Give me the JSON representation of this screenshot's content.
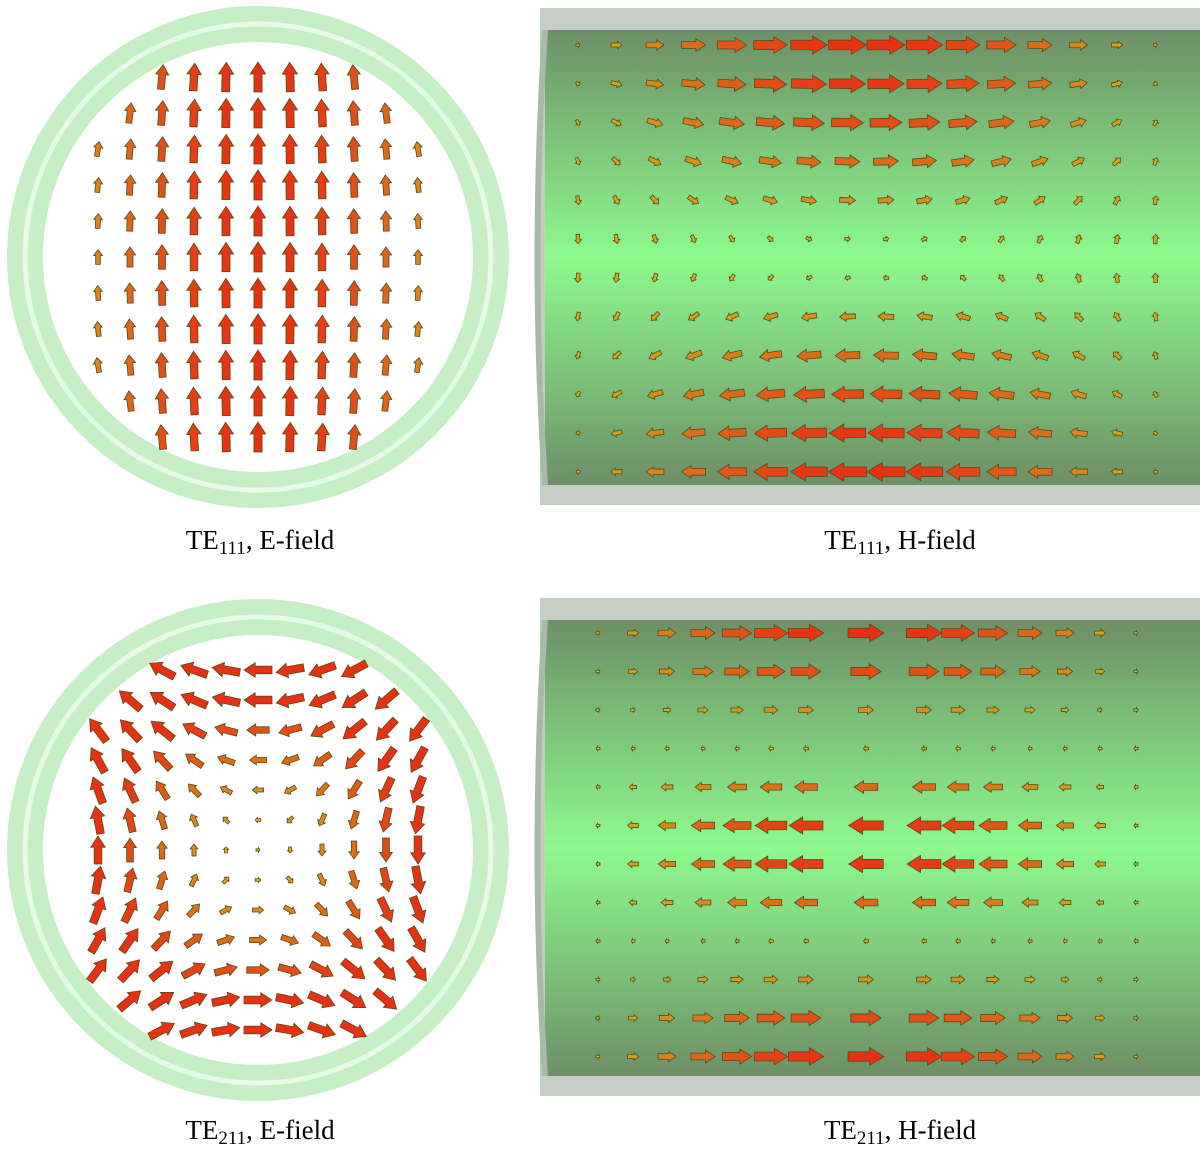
{
  "panels": [
    {
      "mode": "TE",
      "subscript": "111",
      "field": ", E-field"
    },
    {
      "mode": "TE",
      "subscript": "111",
      "field": ", H-field"
    },
    {
      "mode": "TE",
      "subscript": "211",
      "field": ", E-field"
    },
    {
      "mode": "TE",
      "subscript": "211",
      "field": ", H-field"
    }
  ]
}
